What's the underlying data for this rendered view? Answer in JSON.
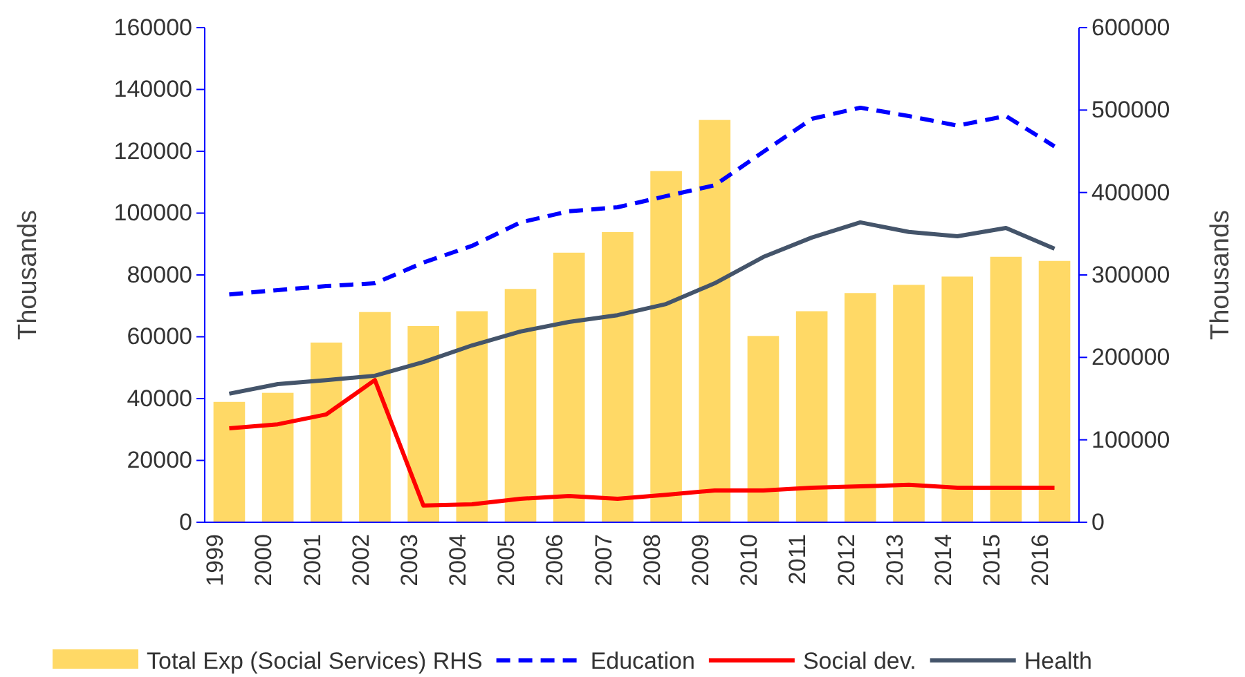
{
  "chart_data": {
    "type": "line",
    "categories": [
      "1999",
      "2000",
      "2001",
      "2002",
      "2003",
      "2004",
      "2005",
      "2006",
      "2007",
      "2008",
      "2009",
      "2010",
      "2011",
      "2012",
      "2013",
      "2014",
      "2015",
      "2016"
    ],
    "ylabel": "Thousands",
    "y2label": "Thousands",
    "ylim": [
      0,
      160000
    ],
    "yticks": [
      0,
      20000,
      40000,
      60000,
      80000,
      100000,
      120000,
      140000,
      160000
    ],
    "y2lim": [
      0,
      600000
    ],
    "y2ticks": [
      0,
      100000,
      200000,
      300000,
      400000,
      500000,
      600000
    ],
    "grid": false,
    "legend": "bottom",
    "series": [
      {
        "name": "Total Exp (Social Services) RHS",
        "type": "bar",
        "axis": "y2",
        "color": "#ffd966",
        "values": [
          146000,
          157000,
          218000,
          255000,
          238000,
          256000,
          283000,
          327000,
          352000,
          426000,
          488000,
          226000,
          256000,
          278000,
          288000,
          298000,
          322000,
          317000
        ]
      },
      {
        "name": "Education",
        "color": "#0000ff",
        "line_style": "dashed",
        "values": [
          73700,
          75100,
          76400,
          77300,
          84000,
          89400,
          97000,
          100600,
          101900,
          105500,
          109000,
          119800,
          130500,
          134100,
          131400,
          128300,
          131400,
          121600
        ]
      },
      {
        "name": "Social dev.",
        "color": "#ff0000",
        "line_style": "solid",
        "values": [
          30400,
          31700,
          34900,
          46000,
          5400,
          5800,
          7600,
          8500,
          7600,
          8900,
          10300,
          10300,
          11200,
          11600,
          12100,
          11200,
          11200,
          11200
        ]
      },
      {
        "name": "Health",
        "color": "#44546a",
        "line_style": "solid",
        "values": [
          41600,
          44700,
          46000,
          47400,
          51800,
          57200,
          61700,
          64800,
          67000,
          70600,
          77300,
          85800,
          92100,
          97000,
          93900,
          92500,
          95200,
          88500
        ]
      }
    ]
  }
}
